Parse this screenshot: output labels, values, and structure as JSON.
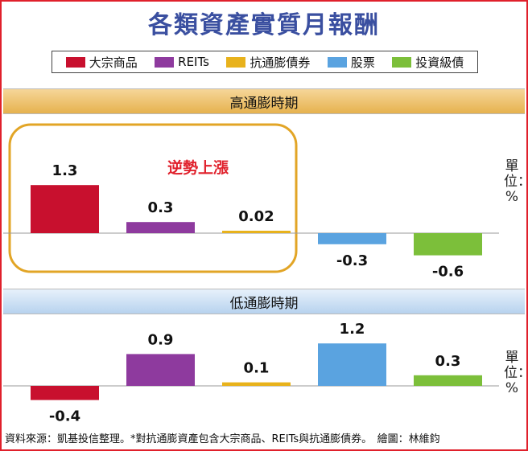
{
  "title": "各類資產實質月報酬",
  "legend": [
    {
      "label": "大宗商品",
      "color": "#c8102e"
    },
    {
      "label": "REITs",
      "color": "#8e3a9e"
    },
    {
      "label": "抗通膨債券",
      "color": "#e8b21c"
    },
    {
      "label": "股票",
      "color": "#5aa3e0"
    },
    {
      "label": "投資級債",
      "color": "#7cbf3a"
    }
  ],
  "annotation": "逆勢上漲",
  "unit_label": "單位：%",
  "footer": "資料來源：凱基投信整理。*對抗通膨資產包含大宗商品、REITs與抗通膨債券。　繪圖：林維鈞",
  "chart_data": [
    {
      "type": "bar",
      "title": "高通膨時期",
      "categories": [
        "大宗商品",
        "REITs",
        "抗通膨債券",
        "股票",
        "投資級債"
      ],
      "values": [
        1.3,
        0.3,
        0.02,
        -0.3,
        -0.6
      ],
      "value_labels": [
        "1.3",
        "0.3",
        "0.02",
        "-0.3",
        "-0.6"
      ],
      "colors": [
        "#c8102e",
        "#8e3a9e",
        "#e8b21c",
        "#5aa3e0",
        "#7cbf3a"
      ],
      "ylabel": "單位：%"
    },
    {
      "type": "bar",
      "title": "低通膨時期",
      "categories": [
        "大宗商品",
        "REITs",
        "抗通膨債券",
        "股票",
        "投資級債"
      ],
      "values": [
        -0.4,
        0.9,
        0.1,
        1.2,
        0.3
      ],
      "value_labels": [
        "-0.4",
        "0.9",
        "0.1",
        "1.2",
        "0.3"
      ],
      "colors": [
        "#c8102e",
        "#8e3a9e",
        "#e8b21c",
        "#5aa3e0",
        "#7cbf3a"
      ],
      "ylabel": "單位：%"
    }
  ]
}
